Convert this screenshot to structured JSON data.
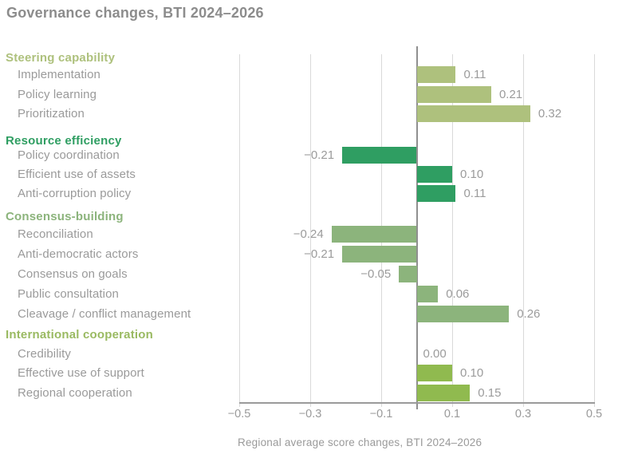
{
  "chart_data": {
    "type": "bar",
    "orientation": "horizontal",
    "title": "Governance changes, BTI 2024–2026",
    "xlabel": "Regional average score changes, BTI 2024–2026",
    "xlim": [
      -0.5,
      0.5
    ],
    "xticks": [
      -0.5,
      -0.3,
      -0.1,
      0.1,
      0.3,
      0.5
    ],
    "xtick_labels": [
      "−0.5",
      "−0.3",
      "−0.1",
      "0.1",
      "0.3",
      "0.5"
    ],
    "grid": true,
    "legend": false,
    "groups": [
      {
        "name": "Steering capability",
        "color": "#aec17d",
        "items": [
          {
            "label": "Implementation",
            "value": 0.11,
            "display": "0.11"
          },
          {
            "label": "Policy learning",
            "value": 0.21,
            "display": "0.21"
          },
          {
            "label": "Prioritization",
            "value": 0.32,
            "display": "0.32"
          }
        ]
      },
      {
        "name": "Resource efficiency",
        "color": "#2f9e62",
        "items": [
          {
            "label": "Policy coordination",
            "value": -0.21,
            "display": "−0.21"
          },
          {
            "label": "Efficient use of assets",
            "value": 0.1,
            "display": "0.10"
          },
          {
            "label": "Anti-corruption policy",
            "value": 0.11,
            "display": "0.11"
          }
        ]
      },
      {
        "name": "Consensus-building",
        "color": "#8cb47c",
        "items": [
          {
            "label": "Reconciliation",
            "value": -0.24,
            "display": "−0.24"
          },
          {
            "label": "Anti-democratic actors",
            "value": -0.21,
            "display": "−0.21"
          },
          {
            "label": "Consensus on goals",
            "value": -0.05,
            "display": "−0.05"
          },
          {
            "label": "Public consultation",
            "value": 0.06,
            "display": "0.06"
          },
          {
            "label": "Cleavage / conflict management",
            "value": 0.26,
            "display": "0.26"
          }
        ]
      },
      {
        "name": "International cooperation",
        "color": "#90ba4f",
        "header_color": "#9aba62",
        "items": [
          {
            "label": "Credibility",
            "value": 0.0,
            "display": "0.00"
          },
          {
            "label": "Effective use of support",
            "value": 0.1,
            "display": "0.10"
          },
          {
            "label": "Regional cooperation",
            "value": 0.15,
            "display": "0.15"
          }
        ]
      }
    ]
  },
  "colors": {
    "background": "#ffffff",
    "title": "#8c8c8c",
    "labels": "#9a9a9a",
    "values": "#9b9b9b",
    "grid": "#d9d9d9",
    "axis": "#9a9a9a",
    "zero_line": "#8f8f8f"
  }
}
